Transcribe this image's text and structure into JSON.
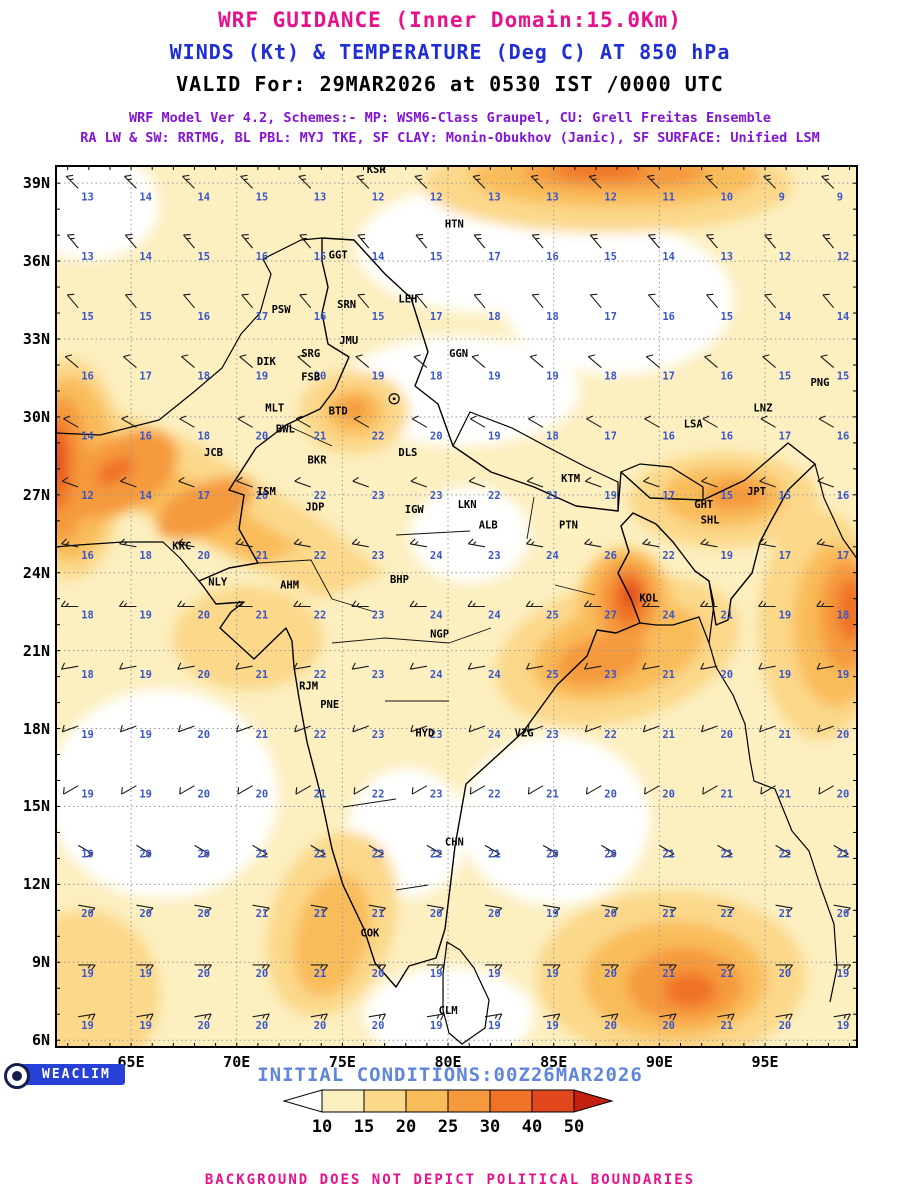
{
  "header": {
    "title": "WRF GUIDANCE (Inner Domain:15.0Km)",
    "subtitle": "WINDS (Kt) & TEMPERATURE (Deg C) AT 850 hPa",
    "valid": "VALID For: 29MAR2026 at 0530 IST /0000 UTC",
    "scheme1": "WRF Model Ver 4.2, Schemes:- MP: WSM6-Class Graupel, CU: Grell Freitas Ensemble",
    "scheme2": "RA LW & SW: RRTMG, BL PBL: MYJ TKE, SF CLAY: Monin-Obukhov (Janic), SF SURFACE: Unified LSM"
  },
  "colors": {
    "title": "#e8118c",
    "subtitle": "#1f2fd4",
    "scheme": "#8313d6",
    "map_numbers": "#3a56c8",
    "initial": "#5f85dd",
    "disclaimer": "#e8118c",
    "logo_bg": "#2741d6",
    "barb": "#1a1a1a"
  },
  "axes": {
    "lat_ticks": [
      "39N",
      "36N",
      "33N",
      "30N",
      "27N",
      "24N",
      "21N",
      "18N",
      "15N",
      "12N",
      "9N",
      "6N"
    ],
    "lat_values": [
      39,
      36,
      33,
      30,
      27,
      24,
      21,
      18,
      15,
      12,
      9,
      6
    ],
    "lon_ticks": [
      "65E",
      "70E",
      "75E",
      "80E",
      "85E",
      "90E",
      "95E"
    ],
    "lon_values": [
      65,
      70,
      75,
      80,
      85,
      90,
      95
    ]
  },
  "colorbar": {
    "labels": [
      "10",
      "15",
      "20",
      "25",
      "30",
      "40",
      "50"
    ],
    "colors": [
      "#fcefc0",
      "#fbd88a",
      "#f9bc5a",
      "#f59a3c",
      "#ef7226",
      "#e2481e"
    ],
    "arrow_left": "#ffffff",
    "arrow_right": "#c42012"
  },
  "stations": [
    {
      "c": "KSR",
      "lon": 76.6,
      "lat": 39.4
    },
    {
      "c": "HTN",
      "lon": 80.3,
      "lat": 37.3
    },
    {
      "c": "GGT",
      "lon": 74.8,
      "lat": 36.1
    },
    {
      "c": "SRN",
      "lon": 75.2,
      "lat": 34.2
    },
    {
      "c": "PSW",
      "lon": 72.1,
      "lat": 34.0
    },
    {
      "c": "LEH",
      "lon": 78.1,
      "lat": 34.4
    },
    {
      "c": "JMU",
      "lon": 75.3,
      "lat": 32.8
    },
    {
      "c": "SRG",
      "lon": 73.5,
      "lat": 32.3
    },
    {
      "c": "DIK",
      "lon": 71.4,
      "lat": 32.0
    },
    {
      "c": "FSB",
      "lon": 73.5,
      "lat": 31.4
    },
    {
      "c": "GGN",
      "lon": 80.5,
      "lat": 32.3
    },
    {
      "c": "MLT",
      "lon": 71.8,
      "lat": 30.2
    },
    {
      "c": "BTD",
      "lon": 74.8,
      "lat": 30.1
    },
    {
      "c": "BWL",
      "lon": 72.3,
      "lat": 29.4
    },
    {
      "c": "PNG",
      "lon": 97.6,
      "lat": 31.2
    },
    {
      "c": "LNZ",
      "lon": 94.9,
      "lat": 30.2
    },
    {
      "c": "LSA",
      "lon": 91.6,
      "lat": 29.6
    },
    {
      "c": "JCB",
      "lon": 68.9,
      "lat": 28.5
    },
    {
      "c": "DLS",
      "lon": 78.1,
      "lat": 28.5
    },
    {
      "c": "BKR",
      "lon": 73.8,
      "lat": 28.2
    },
    {
      "c": "KTM",
      "lon": 85.8,
      "lat": 27.5
    },
    {
      "c": "ISM",
      "lon": 71.4,
      "lat": 27.0
    },
    {
      "c": "LKN",
      "lon": 80.9,
      "lat": 26.5
    },
    {
      "c": "JDP",
      "lon": 73.7,
      "lat": 26.4
    },
    {
      "c": "IGW",
      "lon": 78.4,
      "lat": 26.3
    },
    {
      "c": "GHT",
      "lon": 92.1,
      "lat": 26.5
    },
    {
      "c": "SHL",
      "lon": 92.4,
      "lat": 25.9
    },
    {
      "c": "JPT",
      "lon": 94.6,
      "lat": 27.0
    },
    {
      "c": "ALB",
      "lon": 81.9,
      "lat": 25.7
    },
    {
      "c": "PTN",
      "lon": 85.7,
      "lat": 25.7
    },
    {
      "c": "KRC",
      "lon": 67.4,
      "lat": 24.9
    },
    {
      "c": "NLY",
      "lon": 69.1,
      "lat": 23.5
    },
    {
      "c": "AHM",
      "lon": 72.5,
      "lat": 23.4
    },
    {
      "c": "BHP",
      "lon": 77.7,
      "lat": 23.6
    },
    {
      "c": "KOL",
      "lon": 89.5,
      "lat": 22.9
    },
    {
      "c": "NGP",
      "lon": 79.6,
      "lat": 21.5
    },
    {
      "c": "RJM",
      "lon": 73.4,
      "lat": 19.5
    },
    {
      "c": "PNE",
      "lon": 74.4,
      "lat": 18.8
    },
    {
      "c": "HYD",
      "lon": 78.9,
      "lat": 17.7
    },
    {
      "c": "VZG",
      "lon": 83.6,
      "lat": 17.7
    },
    {
      "c": "CHN",
      "lon": 80.3,
      "lat": 13.5
    },
    {
      "c": "COK",
      "lon": 76.3,
      "lat": 10.0
    },
    {
      "c": "CLM",
      "lon": 80.0,
      "lat": 7.0
    }
  ],
  "city_marker": {
    "lon": 77.45,
    "lat": 30.7
  },
  "footer": {
    "logo": "WEACLIM",
    "initial": "INITIAL CONDITIONS:00Z26MAR2026",
    "disclaimer": "BACKGROUND DOES NOT DEPICT POLITICAL BOUNDARIES"
  },
  "chart_data": {
    "type": "heatmap",
    "title": "WRF GUIDANCE (Inner Domain:15.0Km)",
    "field_shaded": "wind speed (Kt)",
    "field_numbers": "temperature (Deg C)",
    "level": "850 hPa",
    "valid": "29MAR2026 0530 IST / 0000 UTC",
    "initial_conditions": "00Z 26MAR2026",
    "lon_range": [
      61.4,
      99.4
    ],
    "lat_range": [
      5.7,
      39.7
    ],
    "colorbar_levels": [
      10,
      15,
      20,
      25,
      30,
      40,
      50
    ],
    "grid_lons": [
      62.5,
      65.25,
      68,
      70.75,
      73.5,
      76.25,
      79,
      81.75,
      84.5,
      87.25,
      90,
      92.75,
      95.5,
      98.25
    ],
    "grid_lats": [
      38.8,
      36.5,
      34.2,
      31.9,
      29.6,
      27.3,
      25.0,
      22.7,
      20.4,
      18.1,
      15.8,
      13.5,
      11.2,
      8.9,
      6.9
    ],
    "temps_c": [
      [
        13,
        14,
        14,
        15,
        13,
        12,
        12,
        13,
        13,
        12,
        11,
        10,
        9,
        9
      ],
      [
        13,
        14,
        15,
        16,
        15,
        14,
        15,
        17,
        16,
        15,
        14,
        13,
        12,
        12
      ],
      [
        15,
        15,
        16,
        17,
        16,
        15,
        17,
        18,
        18,
        17,
        16,
        15,
        14,
        14
      ],
      [
        16,
        17,
        18,
        19,
        20,
        19,
        18,
        19,
        19,
        18,
        17,
        16,
        15,
        15
      ],
      [
        14,
        16,
        18,
        20,
        21,
        22,
        20,
        19,
        18,
        17,
        16,
        16,
        17,
        16
      ],
      [
        12,
        14,
        17,
        20,
        22,
        23,
        23,
        22,
        21,
        19,
        17,
        15,
        15,
        16
      ],
      [
        16,
        18,
        20,
        21,
        22,
        23,
        24,
        23,
        24,
        26,
        22,
        19,
        17,
        17
      ],
      [
        18,
        19,
        20,
        21,
        22,
        23,
        24,
        24,
        25,
        27,
        24,
        21,
        19,
        18
      ],
      [
        18,
        19,
        20,
        21,
        22,
        23,
        24,
        24,
        25,
        23,
        21,
        20,
        19,
        19
      ],
      [
        19,
        19,
        20,
        21,
        22,
        23,
        23,
        24,
        23,
        22,
        21,
        20,
        21,
        20
      ],
      [
        19,
        19,
        20,
        20,
        21,
        22,
        23,
        22,
        21,
        20,
        20,
        21,
        21,
        20
      ],
      [
        19,
        20,
        20,
        21,
        21,
        22,
        22,
        21,
        20,
        20,
        21,
        21,
        22,
        21
      ],
      [
        20,
        20,
        20,
        21,
        21,
        21,
        20,
        20,
        19,
        20,
        21,
        22,
        21,
        20
      ],
      [
        19,
        19,
        20,
        20,
        21,
        20,
        19,
        19,
        19,
        20,
        21,
        21,
        20,
        19
      ],
      [
        19,
        19,
        20,
        20,
        20,
        20,
        19,
        19,
        19,
        20,
        20,
        21,
        20,
        19
      ]
    ],
    "wind_dir_deg_by_row": [
      315,
      320,
      320,
      310,
      300,
      290,
      280,
      270,
      260,
      250,
      240,
      120,
      100,
      90,
      80
    ],
    "wind_speed_kt_by_row": [
      15,
      15,
      10,
      10,
      10,
      10,
      15,
      15,
      10,
      10,
      10,
      10,
      10,
      15,
      15
    ]
  }
}
